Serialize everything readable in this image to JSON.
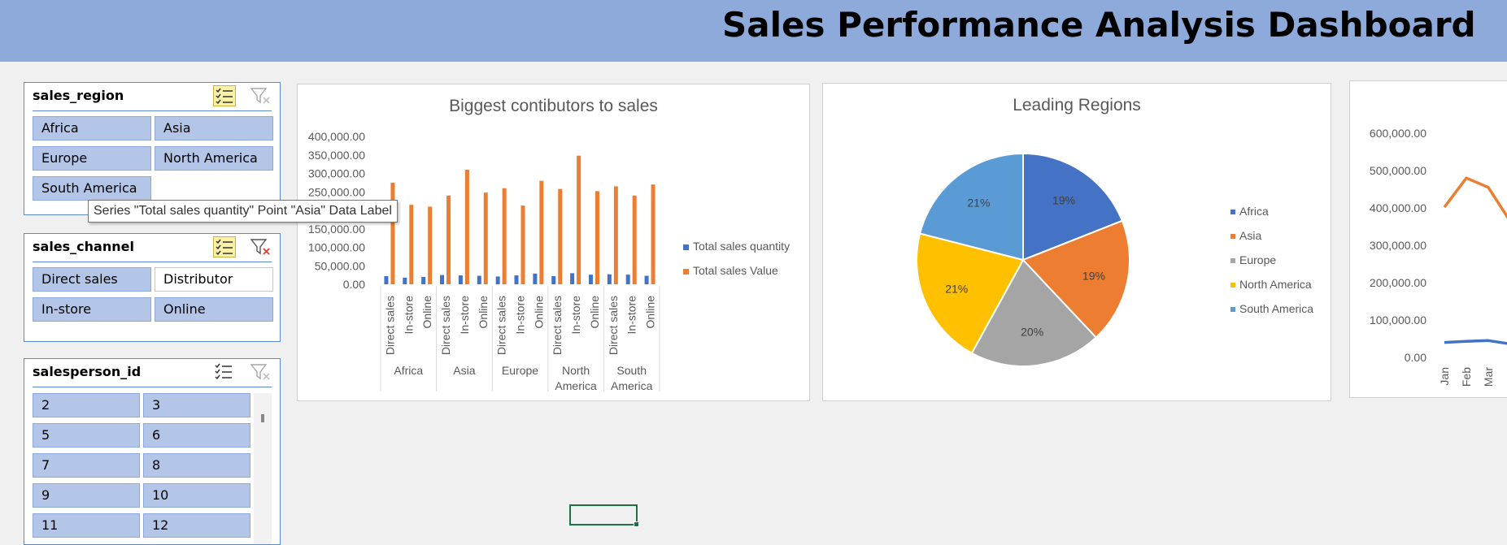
{
  "dashboard_title": "Sales Performance Analysis Dashboard",
  "slicers": {
    "region": {
      "title": "sales_region",
      "items": [
        {
          "label": "Africa",
          "selected": true
        },
        {
          "label": "Asia",
          "selected": true
        },
        {
          "label": "Europe",
          "selected": true
        },
        {
          "label": "North America",
          "selected": true
        },
        {
          "label": "South America",
          "selected": true
        }
      ]
    },
    "channel": {
      "title": "sales_channel",
      "items": [
        {
          "label": "Direct sales",
          "selected": true
        },
        {
          "label": "Distributor",
          "selected": false
        },
        {
          "label": "In-store",
          "selected": true
        },
        {
          "label": "Online",
          "selected": true
        }
      ]
    },
    "salesperson": {
      "title": "salesperson_id",
      "items": [
        {
          "label": "2"
        },
        {
          "label": "3"
        },
        {
          "label": "5"
        },
        {
          "label": "6"
        },
        {
          "label": "7"
        },
        {
          "label": "8"
        },
        {
          "label": "9"
        },
        {
          "label": "10"
        },
        {
          "label": "11"
        },
        {
          "label": "12"
        }
      ]
    }
  },
  "tooltip": "Series \"Total sales quantity\" Point \"Asia\" Data Label",
  "icons": {
    "multi_select": "multi-select-icon",
    "clear_filter": "clear-filter-icon"
  },
  "colors": {
    "banner": "#8eaadb",
    "quantity": "#4472c4",
    "value": "#ed7d31",
    "slicer_selected": "#b4c6e7"
  },
  "chart_data": [
    {
      "type": "bar",
      "title": "Biggest contibutors to sales",
      "groups": [
        "Africa",
        "Asia",
        "Europe",
        "North America",
        "South America"
      ],
      "subcategories": [
        "Direct sales",
        "In-store",
        "Online"
      ],
      "ylim": [
        0,
        400000
      ],
      "yticks": [
        "0.00",
        "50,000.00",
        "100,000.00",
        "150,000.00",
        "200,000.00",
        "250,000.00",
        "300,000.00",
        "350,000.00",
        "400,000.00"
      ],
      "series": [
        {
          "name": "Total sales quantity",
          "color": "#4472c4",
          "values": [
            22000,
            18000,
            20000,
            25000,
            24000,
            23000,
            21000,
            24000,
            29000,
            22000,
            30000,
            26000,
            27000,
            26000,
            23000
          ]
        },
        {
          "name": "Total sales Value",
          "color": "#ed7d31",
          "values": [
            275000,
            215000,
            210000,
            240000,
            310000,
            248000,
            260000,
            213000,
            280000,
            258000,
            348000,
            252000,
            265000,
            240000,
            270000
          ]
        }
      ],
      "legend": "right"
    },
    {
      "type": "pie",
      "title": "Leading Regions",
      "labels": [
        "Africa",
        "Asia",
        "Europe",
        "North America",
        "South America"
      ],
      "values": [
        19,
        19,
        20,
        21,
        21
      ],
      "data_labels": [
        "19%",
        "19%",
        "20%",
        "21%",
        "21%"
      ],
      "colors": [
        "#4472c4",
        "#ed7d31",
        "#a5a5a5",
        "#ffc000",
        "#5b9bd5"
      ],
      "legend": "right"
    },
    {
      "type": "line",
      "title": "",
      "x": [
        "Jan",
        "Feb",
        "Mar"
      ],
      "ylim": [
        0,
        600000
      ],
      "yticks": [
        "0.00",
        "100,000.00",
        "200,000.00",
        "300,000.00",
        "400,000.00",
        "500,000.00",
        "600,000.00"
      ],
      "series": [
        {
          "color": "#ed7d31",
          "values": [
            402000,
            480000,
            455000
          ]
        },
        {
          "color": "#4472c4",
          "values": [
            40000,
            43000,
            45000
          ]
        }
      ]
    }
  ]
}
